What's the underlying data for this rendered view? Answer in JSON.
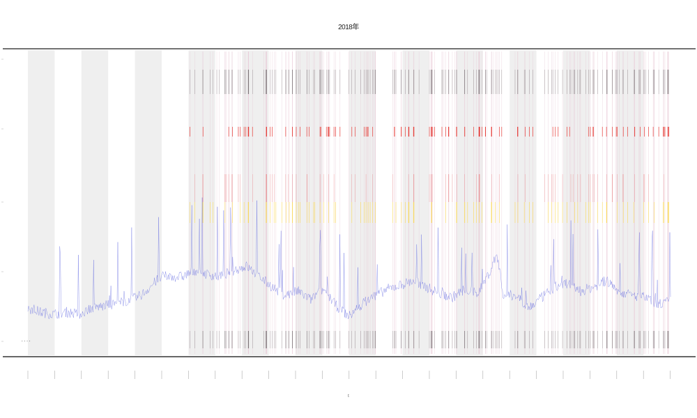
{
  "chart_data": {
    "type": "line",
    "title": "2018年",
    "xlabel": "t",
    "ylabel": "",
    "n_points": 930,
    "n_weeks": 24,
    "shaded_weeks": [
      0,
      2,
      4,
      6,
      8,
      10,
      12,
      14,
      16,
      18,
      20,
      22
    ],
    "legend": {
      "placement": "bottom-left",
      "label": "...."
    },
    "series": [
      {
        "name": "",
        "color": "#5b63e0",
        "anchors": [
          [
            0.0,
            0.1
          ],
          [
            0.02,
            0.08
          ],
          [
            0.04,
            0.07
          ],
          [
            0.06,
            0.08
          ],
          [
            0.08,
            0.07
          ],
          [
            0.1,
            0.1
          ],
          [
            0.12,
            0.11
          ],
          [
            0.15,
            0.13
          ],
          [
            0.17,
            0.15
          ],
          [
            0.18,
            0.17
          ],
          [
            0.2,
            0.23
          ],
          [
            0.21,
            0.25
          ],
          [
            0.24,
            0.25
          ],
          [
            0.26,
            0.28
          ],
          [
            0.28,
            0.26
          ],
          [
            0.3,
            0.25
          ],
          [
            0.32,
            0.28
          ],
          [
            0.34,
            0.3
          ],
          [
            0.36,
            0.25
          ],
          [
            0.38,
            0.2
          ],
          [
            0.4,
            0.16
          ],
          [
            0.42,
            0.18
          ],
          [
            0.44,
            0.14
          ],
          [
            0.46,
            0.19
          ],
          [
            0.48,
            0.11
          ],
          [
            0.5,
            0.06
          ],
          [
            0.52,
            0.12
          ],
          [
            0.54,
            0.16
          ],
          [
            0.56,
            0.19
          ],
          [
            0.58,
            0.21
          ],
          [
            0.6,
            0.23
          ],
          [
            0.62,
            0.2
          ],
          [
            0.64,
            0.17
          ],
          [
            0.66,
            0.15
          ],
          [
            0.68,
            0.19
          ],
          [
            0.7,
            0.17
          ],
          [
            0.72,
            0.28
          ],
          [
            0.73,
            0.36
          ],
          [
            0.74,
            0.16
          ],
          [
            0.76,
            0.16
          ],
          [
            0.78,
            0.1
          ],
          [
            0.8,
            0.15
          ],
          [
            0.82,
            0.2
          ],
          [
            0.84,
            0.22
          ],
          [
            0.86,
            0.18
          ],
          [
            0.88,
            0.2
          ],
          [
            0.9,
            0.23
          ],
          [
            0.92,
            0.18
          ],
          [
            0.94,
            0.16
          ],
          [
            0.96,
            0.15
          ],
          [
            0.98,
            0.12
          ],
          [
            1.0,
            0.13
          ]
        ]
      }
    ],
    "event_markers": [
      {
        "name": "",
        "color": "#444444"
      },
      {
        "name": "",
        "color": "#e53935"
      },
      {
        "name": "",
        "color": "#fdd835"
      }
    ]
  }
}
